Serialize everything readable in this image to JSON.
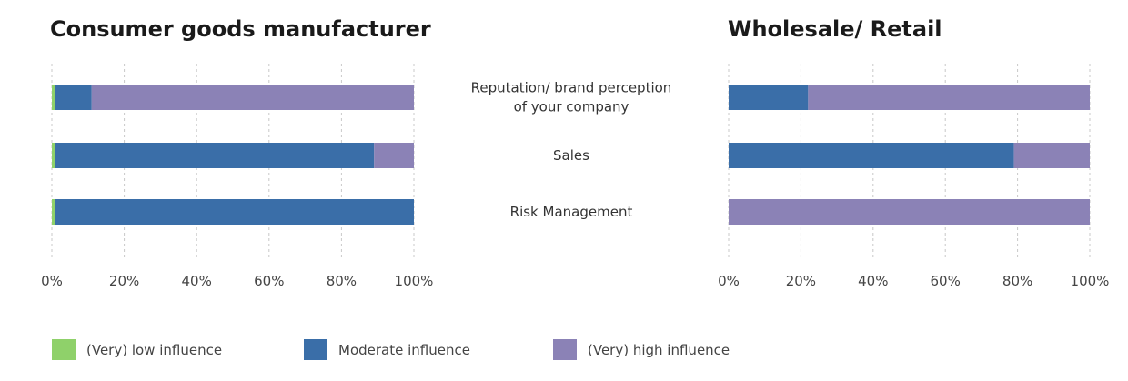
{
  "chart_data": [
    {
      "type": "bar",
      "orientation": "horizontal",
      "stacked": true,
      "title": "Consumer goods manufacturer",
      "categories": [
        "Reputation/ brand perception of your company",
        "Sales",
        "Risk Management"
      ],
      "series": [
        {
          "name": "(Very) low influence",
          "values": [
            1,
            1,
            1
          ]
        },
        {
          "name": "Moderate influence",
          "values": [
            10,
            88,
            99
          ]
        },
        {
          "name": "(Very) high influence",
          "values": [
            89,
            11,
            0
          ]
        }
      ],
      "xlim": [
        0,
        100
      ],
      "xticks": [
        "0%",
        "20%",
        "40%",
        "60%",
        "80%",
        "100%"
      ],
      "grid": true
    },
    {
      "type": "bar",
      "orientation": "horizontal",
      "stacked": true,
      "title": "Wholesale/ Retail",
      "categories": [
        "Reputation/ brand perception of your company",
        "Sales",
        "Risk Management"
      ],
      "series": [
        {
          "name": "(Very) low influence",
          "values": [
            0,
            0,
            0
          ]
        },
        {
          "name": "Moderate influence",
          "values": [
            22,
            79,
            0
          ]
        },
        {
          "name": "(Very) high influence",
          "values": [
            78,
            21,
            100
          ]
        }
      ],
      "xlim": [
        0,
        100
      ],
      "xticks": [
        "0%",
        "20%",
        "40%",
        "60%",
        "80%",
        "100%"
      ],
      "grid": true
    }
  ],
  "category_labels": [
    [
      "Reputation/ brand perception",
      "of your company"
    ],
    [
      "Sales"
    ],
    [
      "Risk Management"
    ]
  ],
  "legend": {
    "placement": "bottom",
    "items": [
      {
        "label": "(Very) low influence",
        "color": "#8fd16a"
      },
      {
        "label": "Moderate influence",
        "color": "#3a6ea8"
      },
      {
        "label": "(Very) high influence",
        "color": "#8b82b6"
      }
    ]
  },
  "colors": {
    "low": "#8fd16a",
    "moderate": "#3a6ea8",
    "high": "#8b82b6",
    "grid": "#c8c8c8"
  }
}
